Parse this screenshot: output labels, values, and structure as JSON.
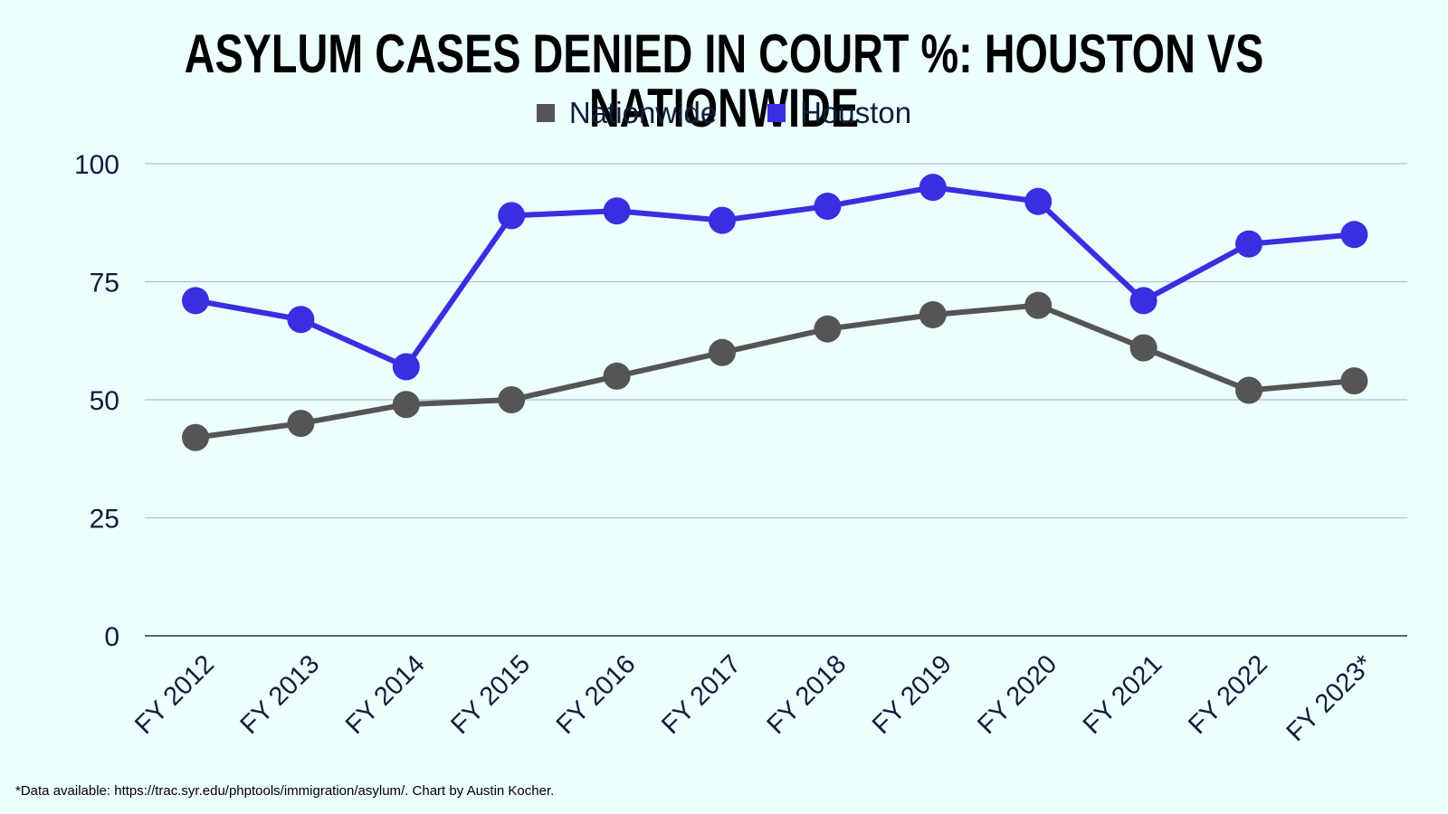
{
  "chart_data": {
    "type": "line",
    "title": "ASYLUM CASES DENIED IN COURT %: HOUSTON VS NATIONWIDE",
    "categories": [
      "FY 2012",
      "FY 2013",
      "FY 2014",
      "FY 2015",
      "FY 2016",
      "FY 2017",
      "FY 2018",
      "FY 2019",
      "FY 2020",
      "FY 2021",
      "FY 2022",
      "FY 2023*"
    ],
    "series": [
      {
        "name": "Nationwide",
        "color": "#555555",
        "values": [
          42,
          45,
          49,
          50,
          55,
          60,
          65,
          68,
          70,
          61,
          52,
          54
        ]
      },
      {
        "name": "Houston",
        "color": "#3b2de0",
        "values": [
          71,
          67,
          57,
          89,
          90,
          88,
          91,
          95,
          92,
          71,
          83,
          85
        ]
      }
    ],
    "xlabel": "",
    "ylabel": "",
    "ylim": [
      0,
      100
    ],
    "yticks": [
      0,
      25,
      50,
      75,
      100
    ],
    "grid": true,
    "legend_position": "top-center"
  },
  "footnote": "*Data available: https://trac.syr.edu/phptools/immigration/asylum/. Chart by Austin Kocher."
}
